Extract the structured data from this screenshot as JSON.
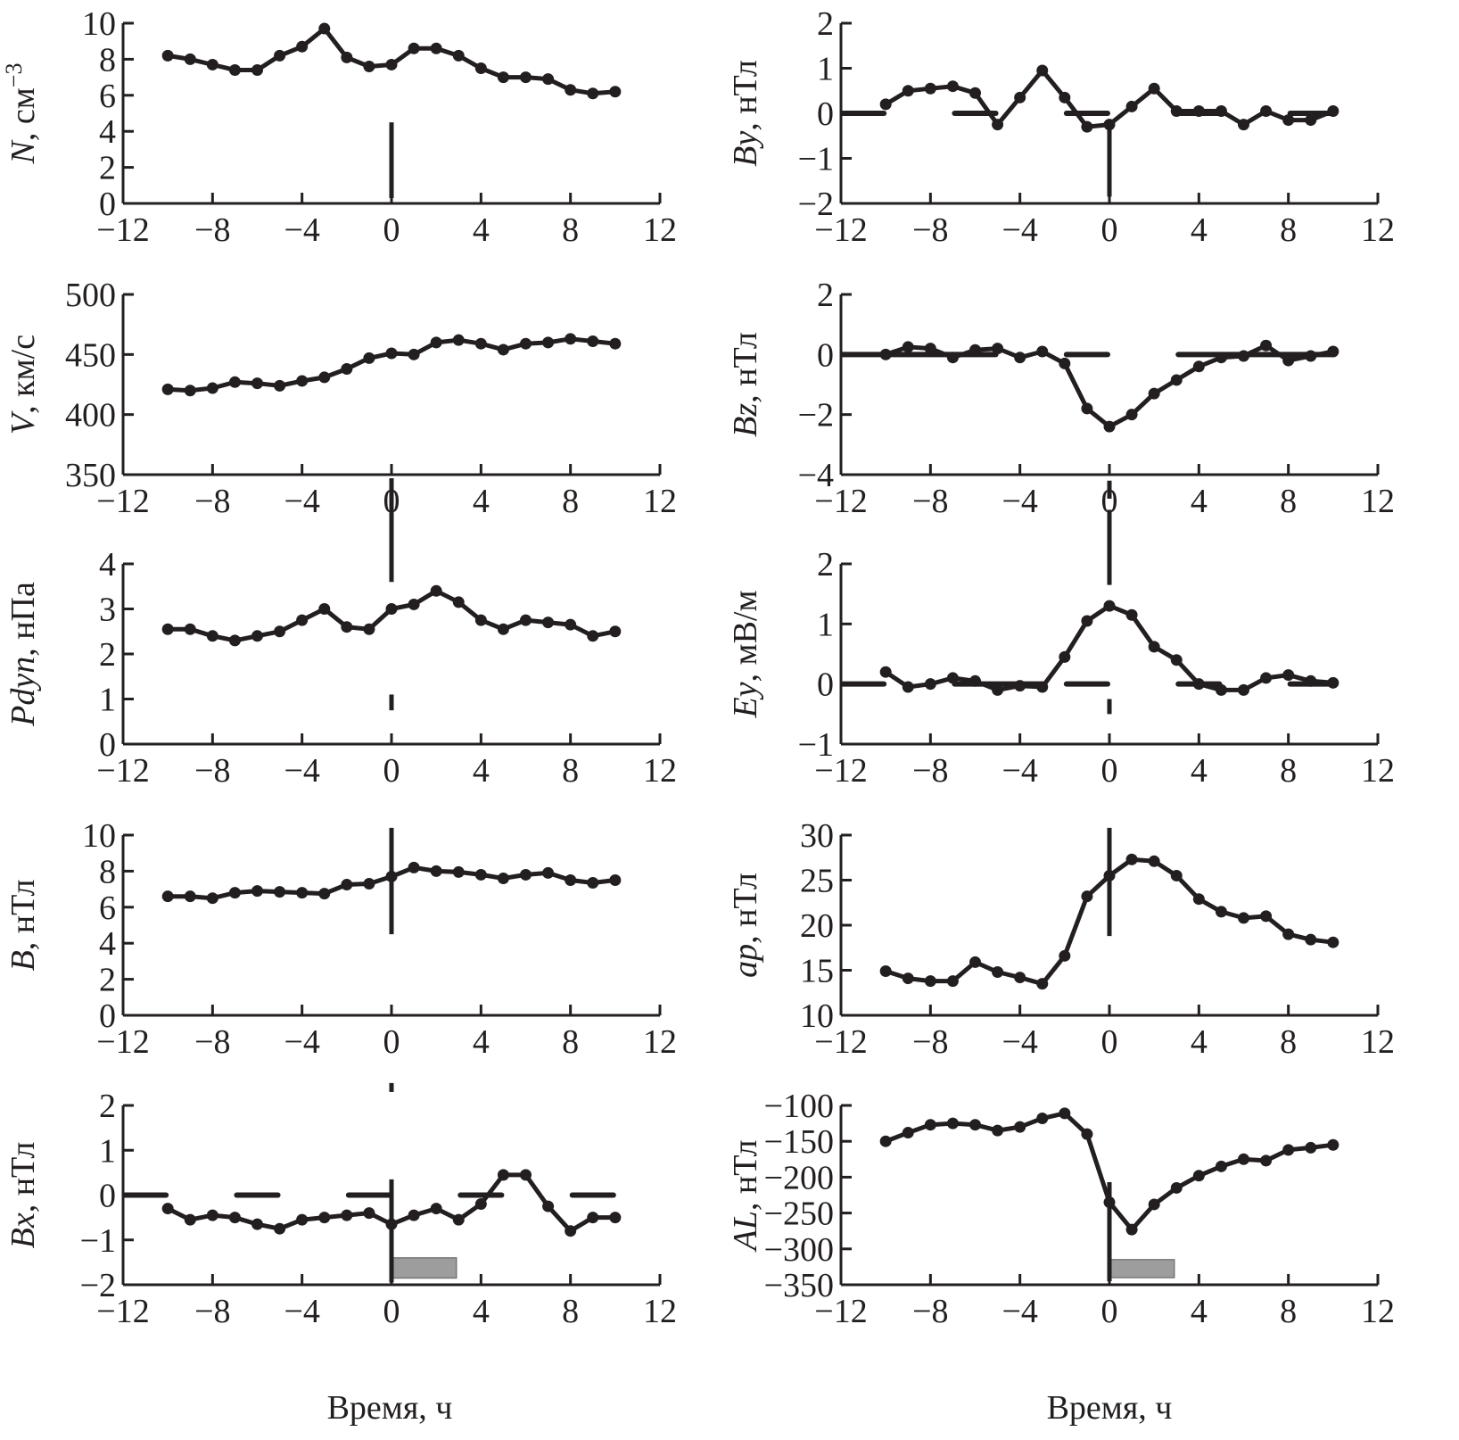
{
  "figure": {
    "xlabel": "Время, ч",
    "x_ticks": [
      "−12",
      "−8",
      "−4",
      "0",
      "4",
      "8",
      "12"
    ]
  },
  "chart_data": [
    {
      "id": "N",
      "type": "line",
      "panel": "left-row1",
      "ylabel_var": "N",
      "ylabel_unit": ", см",
      "ylabel_sup": "−3",
      "xlim": [
        -12,
        12
      ],
      "ylim": [
        0,
        10
      ],
      "y_ticks": [
        0,
        2,
        4,
        6,
        8,
        10
      ],
      "x": [
        -10,
        -9,
        -8,
        -7,
        -6,
        -5,
        -4,
        -3,
        -2,
        -1,
        0,
        1,
        2,
        3,
        4,
        5,
        6,
        7,
        8,
        9,
        10
      ],
      "values": [
        8.2,
        8.0,
        7.7,
        7.4,
        7.4,
        8.2,
        8.7,
        9.7,
        8.1,
        7.6,
        7.7,
        8.6,
        8.6,
        8.2,
        7.5,
        7.0,
        7.0,
        6.9,
        6.3,
        6.1,
        6.2
      ],
      "marker": {
        "x": 0,
        "y_from": 0.3,
        "y_to": 4.5
      },
      "baseline_dashes": [],
      "interval_box": null
    },
    {
      "id": "By",
      "type": "line",
      "panel": "right-row1",
      "ylabel_var": "By",
      "ylabel_unit": ", нТл",
      "ylabel_sup": "",
      "xlim": [
        -12,
        12
      ],
      "ylim": [
        -2,
        2
      ],
      "y_ticks": [
        -2,
        -1,
        0,
        1,
        2
      ],
      "x": [
        -10,
        -9,
        -8,
        -7,
        -6,
        -5,
        -4,
        -3,
        -2,
        -1,
        0,
        1,
        2,
        3,
        4,
        5,
        6,
        7,
        8,
        9,
        10
      ],
      "values": [
        0.2,
        0.5,
        0.55,
        0.6,
        0.45,
        -0.25,
        0.35,
        0.95,
        0.35,
        -0.3,
        -0.25,
        0.15,
        0.55,
        0.05,
        0.05,
        0.05,
        -0.25,
        0.05,
        -0.15,
        -0.15,
        0.05
      ],
      "marker": {
        "x": 0,
        "y_from": -1.85,
        "y_to": -0.25
      },
      "baseline_dashes": [
        [
          -12,
          -10
        ],
        [
          -7,
          -5
        ],
        [
          -2,
          0
        ],
        [
          3,
          5
        ],
        [
          8,
          10
        ]
      ],
      "interval_box": null
    },
    {
      "id": "V",
      "type": "line",
      "panel": "left-row2",
      "ylabel_var": "V",
      "ylabel_unit": ", км/с",
      "ylabel_sup": "",
      "xlim": [
        -12,
        12
      ],
      "ylim": [
        350,
        500
      ],
      "y_ticks": [
        350,
        400,
        450,
        500
      ],
      "x": [
        -10,
        -9,
        -8,
        -7,
        -6,
        -5,
        -4,
        -3,
        -2,
        -1,
        0,
        1,
        2,
        3,
        4,
        5,
        6,
        7,
        8,
        9,
        10
      ],
      "values": [
        421,
        420,
        422,
        427,
        426,
        424,
        428,
        431,
        438,
        447,
        451,
        450,
        460,
        462,
        459,
        454,
        459,
        460,
        463,
        461,
        459
      ],
      "marker": {
        "x": 0,
        "y_from": 330,
        "y_to": 345
      },
      "baseline_dashes": [],
      "interval_box": null
    },
    {
      "id": "Bz",
      "type": "line",
      "panel": "right-row2",
      "ylabel_var": "Bz",
      "ylabel_unit": ", нТл",
      "ylabel_sup": "",
      "xlim": [
        -12,
        12
      ],
      "ylim": [
        -4,
        2
      ],
      "y_ticks": [
        -4,
        -2,
        0,
        2
      ],
      "x": [
        -10,
        -9,
        -8,
        -7,
        -6,
        -5,
        -4,
        -3,
        -2,
        -1,
        0,
        1,
        2,
        3,
        4,
        5,
        6,
        7,
        8,
        9,
        10
      ],
      "values": [
        0.0,
        0.25,
        0.2,
        -0.1,
        0.15,
        0.2,
        -0.1,
        0.1,
        -0.3,
        -1.8,
        -2.4,
        -2.0,
        -1.3,
        -0.85,
        -0.4,
        -0.1,
        -0.05,
        0.3,
        -0.2,
        -0.05,
        0.1
      ],
      "marker": {
        "x": 0,
        "y_from": -4.8,
        "y_to": -4.2
      },
      "baseline_dashes": [
        [
          -12,
          -7
        ],
        [
          -7,
          -5
        ],
        [
          -2,
          0
        ],
        [
          3,
          5
        ],
        [
          5,
          10
        ]
      ],
      "interval_box": null
    },
    {
      "id": "Pdyn",
      "type": "line",
      "panel": "left-row3",
      "ylabel_var": "Pdyn",
      "ylabel_unit": ", нПа",
      "ylabel_sup": "",
      "xlim": [
        -12,
        12
      ],
      "ylim": [
        0,
        4
      ],
      "y_ticks": [
        0,
        1,
        2,
        3,
        4
      ],
      "x": [
        -10,
        -9,
        -8,
        -7,
        -6,
        -5,
        -4,
        -3,
        -2,
        -1,
        0,
        1,
        2,
        3,
        4,
        5,
        6,
        7,
        8,
        9,
        10
      ],
      "values": [
        2.55,
        2.55,
        2.4,
        2.3,
        2.4,
        2.5,
        2.75,
        3.0,
        2.6,
        2.55,
        3.0,
        3.1,
        3.4,
        3.15,
        2.75,
        2.55,
        2.75,
        2.7,
        2.65,
        2.4,
        2.5
      ],
      "marker": {
        "x": 0,
        "y_from": 3.6,
        "y_to": 5.9
      },
      "marker2": {
        "x": 0,
        "y_from": 0.75,
        "y_to": 1.1
      },
      "baseline_dashes": [],
      "interval_box": null
    },
    {
      "id": "Ey",
      "type": "line",
      "panel": "right-row3",
      "ylabel_var": "Ey",
      "ylabel_unit": ", мВ/м",
      "ylabel_sup": "",
      "xlim": [
        -12,
        12
      ],
      "ylim": [
        -1,
        2
      ],
      "y_ticks": [
        -1,
        0,
        1,
        2
      ],
      "x": [
        -10,
        -9,
        -8,
        -7,
        -6,
        -5,
        -4,
        -3,
        -2,
        -1,
        0,
        1,
        2,
        3,
        4,
        5,
        6,
        7,
        8,
        9,
        10
      ],
      "values": [
        0.2,
        -0.05,
        0.0,
        0.1,
        0.05,
        -0.1,
        -0.03,
        -0.05,
        0.45,
        1.05,
        1.3,
        1.15,
        0.62,
        0.4,
        0.0,
        -0.1,
        -0.1,
        0.1,
        0.15,
        0.05,
        0.02
      ],
      "marker": {
        "x": 0,
        "y_from": 1.65,
        "y_to": 2.9
      },
      "marker2": {
        "x": 0,
        "y_from": -0.5,
        "y_to": -0.25
      },
      "baseline_dashes": [
        [
          -12,
          -10
        ],
        [
          -7,
          -3
        ],
        [
          -2,
          0
        ],
        [
          3,
          5
        ],
        [
          8,
          10
        ]
      ],
      "interval_box": null
    },
    {
      "id": "B",
      "type": "line",
      "panel": "left-row4",
      "ylabel_var": "B",
      "ylabel_unit": ", нТл",
      "ylabel_sup": "",
      "xlim": [
        -12,
        12
      ],
      "ylim": [
        0,
        10
      ],
      "y_ticks": [
        0,
        2,
        4,
        6,
        8,
        10
      ],
      "x": [
        -10,
        -9,
        -8,
        -7,
        -6,
        -5,
        -4,
        -3,
        -2,
        -1,
        0,
        1,
        2,
        3,
        4,
        5,
        6,
        7,
        8,
        9,
        10
      ],
      "values": [
        6.6,
        6.6,
        6.5,
        6.8,
        6.9,
        6.85,
        6.8,
        6.75,
        7.25,
        7.3,
        7.7,
        8.2,
        8.0,
        7.95,
        7.8,
        7.6,
        7.8,
        7.9,
        7.5,
        7.35,
        7.5
      ],
      "marker": {
        "x": 0,
        "y_from": 4.5,
        "y_to": 10.4
      },
      "baseline_dashes": [],
      "interval_box": null
    },
    {
      "id": "ap",
      "type": "line",
      "panel": "right-row4",
      "ylabel_var": "ap",
      "ylabel_unit": ", нТл",
      "ylabel_sup": "",
      "xlim": [
        -12,
        12
      ],
      "ylim": [
        10,
        30
      ],
      "y_ticks": [
        10,
        15,
        20,
        25,
        30
      ],
      "x": [
        -10,
        -9,
        -8,
        -7,
        -6,
        -5,
        -4,
        -3,
        -2,
        -1,
        0,
        1,
        2,
        3,
        4,
        5,
        6,
        7,
        8,
        9,
        10
      ],
      "values": [
        14.9,
        14.1,
        13.8,
        13.8,
        15.9,
        14.8,
        14.2,
        13.5,
        16.6,
        23.2,
        25.5,
        27.3,
        27.1,
        25.5,
        22.9,
        21.5,
        20.8,
        21.0,
        19.0,
        18.4,
        18.1
      ],
      "marker": {
        "x": 0,
        "y_from": 18.8,
        "y_to": 30.8
      },
      "baseline_dashes": [],
      "interval_box": null
    },
    {
      "id": "Bx",
      "type": "line",
      "panel": "left-row5",
      "ylabel_var": "Bx",
      "ylabel_unit": ", нТл",
      "ylabel_sup": "",
      "xlim": [
        -12,
        12
      ],
      "ylim": [
        -2,
        2
      ],
      "y_ticks": [
        -2,
        -1,
        0,
        1,
        2
      ],
      "x": [
        -10,
        -9,
        -8,
        -7,
        -6,
        -5,
        -4,
        -3,
        -2,
        -1,
        0,
        1,
        2,
        3,
        4,
        5,
        6,
        7,
        8,
        9,
        10
      ],
      "values": [
        -0.3,
        -0.55,
        -0.45,
        -0.5,
        -0.65,
        -0.75,
        -0.55,
        -0.5,
        -0.45,
        -0.4,
        -0.65,
        -0.45,
        -0.3,
        -0.55,
        -0.2,
        0.45,
        0.45,
        -0.25,
        -0.8,
        -0.5,
        -0.5
      ],
      "marker": {
        "x": 0,
        "y_from": -1.95,
        "y_to": 0.35
      },
      "marker_top": {
        "x": 0,
        "y_from": 2.3,
        "y_to": 2.5
      },
      "baseline_dashes": [
        [
          -12,
          -10
        ],
        [
          -7,
          -5
        ],
        [
          -2,
          0
        ],
        [
          3,
          5
        ],
        [
          8,
          10
        ]
      ],
      "interval_box": {
        "x_from": 0,
        "x_to": 2.9,
        "y_from": -1.85,
        "y_to": -1.4
      }
    },
    {
      "id": "AL",
      "type": "line",
      "panel": "right-row5",
      "ylabel_var": "AL",
      "ylabel_unit": ", нТл",
      "ylabel_sup": "",
      "xlim": [
        -12,
        12
      ],
      "ylim": [
        -350,
        -100
      ],
      "y_ticks": [
        -350,
        -300,
        -250,
        -200,
        -150,
        -100
      ],
      "x": [
        -10,
        -9,
        -8,
        -7,
        -6,
        -5,
        -4,
        -3,
        -2,
        -1,
        0,
        1,
        2,
        3,
        4,
        5,
        6,
        7,
        8,
        9,
        10
      ],
      "values": [
        -150,
        -138,
        -127,
        -125,
        -127,
        -135,
        -130,
        -118,
        -111,
        -140,
        -235,
        -273,
        -238,
        -215,
        -198,
        -185,
        -175,
        -177,
        -162,
        -159,
        -155
      ],
      "marker": {
        "x": 0,
        "y_from": -345,
        "y_to": -207
      },
      "baseline_dashes": [],
      "interval_box": {
        "x_from": 0,
        "x_to": 2.9,
        "y_from": -340,
        "y_to": -315
      }
    }
  ]
}
